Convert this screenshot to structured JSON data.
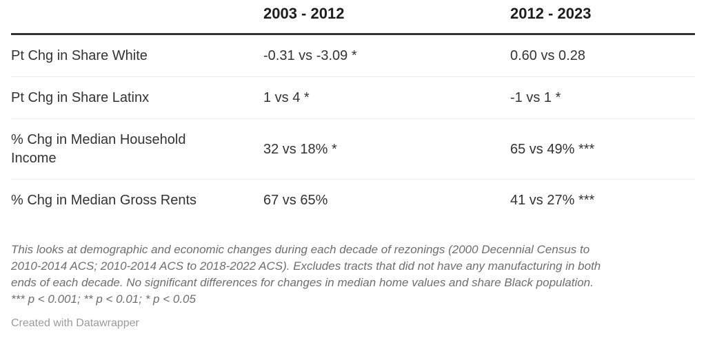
{
  "table": {
    "columns": [
      "",
      "2003 - 2012",
      "2012 - 2023"
    ],
    "rows": [
      {
        "label": "Pt Chg in Share White",
        "values": [
          "-0.31 vs -3.09 *",
          "0.60 vs 0.28"
        ]
      },
      {
        "label": "Pt Chg in Share Latinx",
        "values": [
          "1 vs 4 *",
          "-1 vs 1 *"
        ]
      },
      {
        "label": "% Chg in Median Household Income",
        "values": [
          "32 vs 18% *",
          "65 vs 49% ***"
        ]
      },
      {
        "label": "% Chg in Median Gross Rents",
        "values": [
          "67 vs 65%",
          "41 vs 27% ***"
        ]
      }
    ]
  },
  "footnote": {
    "full_text": "This looks at demographic and economic changes during each decade of rezonings (2000 Decennial Census to 2010-2014 ACS; 2010-2014 ACS to 2018-2022 ACS). Excludes tracts that did not have any manufacturing in both ends of each decade. No significant differences for changes in median home values and share Black population. *** p < 0.001; ** p < 0.01; * p < 0.05",
    "lines": [
      "This looks at demographic and economic changes during each decade of rezonings (2000 Decennial Census to",
      "2010-2014 ACS; 2010-2014 ACS to 2018-2022 ACS). Excludes tracts that did not have any manufacturing in both",
      "ends of each decade. No significant differences for changes in median home values and share Black population.",
      "*** p < 0.001; ** p < 0.01; * p < 0.05"
    ]
  },
  "credit": "Created with Datawrapper",
  "colors": {
    "header_text": "#1d1d1d",
    "body_text": "#333333",
    "header_rule": "#333333",
    "row_separator": "#e9e9e9",
    "footnote_text": "#6e6e6e",
    "credit_text": "#9b9b9b",
    "background": "#ffffff"
  }
}
